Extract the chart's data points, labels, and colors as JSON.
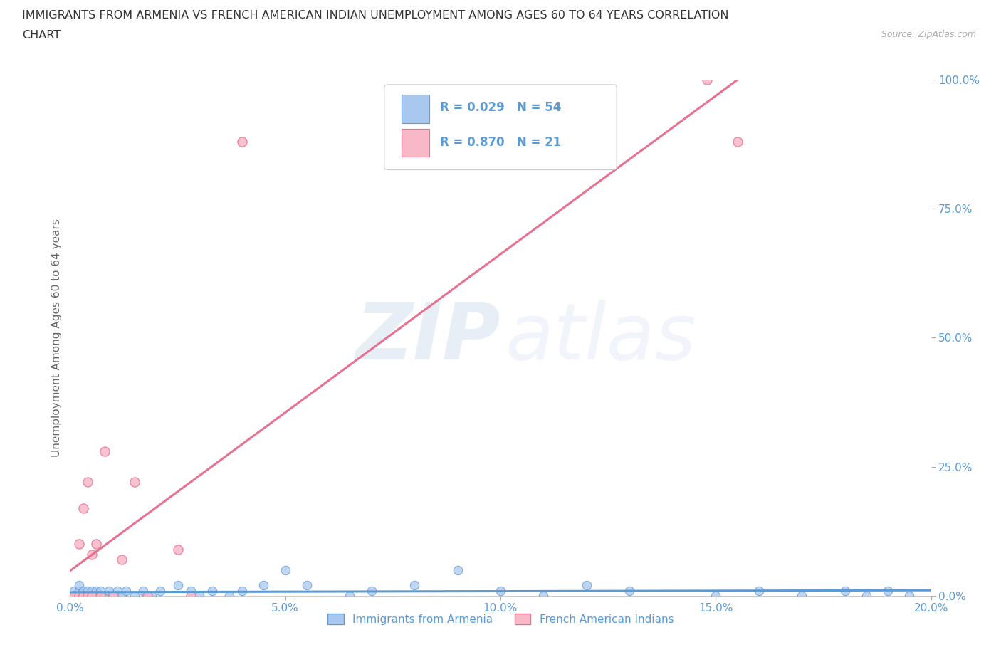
{
  "title_line1": "IMMIGRANTS FROM ARMENIA VS FRENCH AMERICAN INDIAN UNEMPLOYMENT AMONG AGES 60 TO 64 YEARS CORRELATION",
  "title_line2": "CHART",
  "source": "Source: ZipAtlas.com",
  "ylabel": "Unemployment Among Ages 60 to 64 years",
  "series1_label": "Immigrants from Armenia",
  "series2_label": "French American Indians",
  "series1_color": "#A8C8F0",
  "series2_color": "#F8B8C8",
  "series1_edge_color": "#6699CC",
  "series2_edge_color": "#E87090",
  "series1_line_color": "#5B9BD5",
  "series2_line_color": "#E87090",
  "legend_r1": "R = 0.029",
  "legend_n1": "N = 54",
  "legend_r2": "R = 0.870",
  "legend_n2": "N = 21",
  "xlim": [
    0.0,
    0.2
  ],
  "ylim": [
    0.0,
    1.0
  ],
  "xticks": [
    0.0,
    0.05,
    0.1,
    0.15,
    0.2
  ],
  "xtick_labels": [
    "0.0%",
    "5.0%",
    "10.0%",
    "15.0%",
    "20.0%"
  ],
  "yticks_right": [
    0.0,
    0.25,
    0.5,
    0.75,
    1.0
  ],
  "ytick_labels_right": [
    "0.0%",
    "25.0%",
    "50.0%",
    "75.0%",
    "100.0%"
  ],
  "watermark_zip": "ZIP",
  "watermark_atlas": "atlas",
  "background_color": "#FFFFFF",
  "grid_color": "#CCCCCC",
  "title_color": "#333333",
  "axis_label_color": "#666666",
  "tick_label_color": "#5B9BD5",
  "series1_x": [
    0.001,
    0.001,
    0.002,
    0.002,
    0.002,
    0.003,
    0.003,
    0.003,
    0.004,
    0.004,
    0.004,
    0.005,
    0.005,
    0.005,
    0.006,
    0.006,
    0.006,
    0.007,
    0.007,
    0.008,
    0.008,
    0.009,
    0.01,
    0.011,
    0.012,
    0.013,
    0.015,
    0.017,
    0.019,
    0.021,
    0.025,
    0.028,
    0.03,
    0.033,
    0.037,
    0.04,
    0.045,
    0.05,
    0.055,
    0.065,
    0.07,
    0.08,
    0.09,
    0.1,
    0.11,
    0.12,
    0.13,
    0.15,
    0.16,
    0.17,
    0.18,
    0.185,
    0.19,
    0.195
  ],
  "series1_y": [
    0.0,
    0.01,
    0.0,
    0.01,
    0.02,
    0.0,
    0.01,
    0.0,
    0.0,
    0.01,
    0.0,
    0.0,
    0.01,
    0.0,
    0.0,
    0.01,
    0.0,
    0.0,
    0.01,
    0.0,
    0.0,
    0.01,
    0.0,
    0.01,
    0.0,
    0.01,
    0.0,
    0.01,
    0.0,
    0.01,
    0.02,
    0.01,
    0.0,
    0.01,
    0.0,
    0.01,
    0.02,
    0.05,
    0.02,
    0.0,
    0.01,
    0.02,
    0.05,
    0.01,
    0.0,
    0.02,
    0.01,
    0.0,
    0.01,
    0.0,
    0.01,
    0.0,
    0.01,
    0.0
  ],
  "series2_x": [
    0.001,
    0.002,
    0.002,
    0.003,
    0.003,
    0.004,
    0.004,
    0.005,
    0.005,
    0.006,
    0.007,
    0.008,
    0.01,
    0.012,
    0.015,
    0.018,
    0.025,
    0.028,
    0.04,
    0.148,
    0.155
  ],
  "series2_y": [
    0.0,
    0.0,
    0.1,
    0.0,
    0.17,
    0.0,
    0.22,
    0.0,
    0.08,
    0.1,
    0.0,
    0.28,
    0.0,
    0.07,
    0.22,
    0.0,
    0.09,
    0.0,
    0.88,
    1.0,
    0.88
  ]
}
